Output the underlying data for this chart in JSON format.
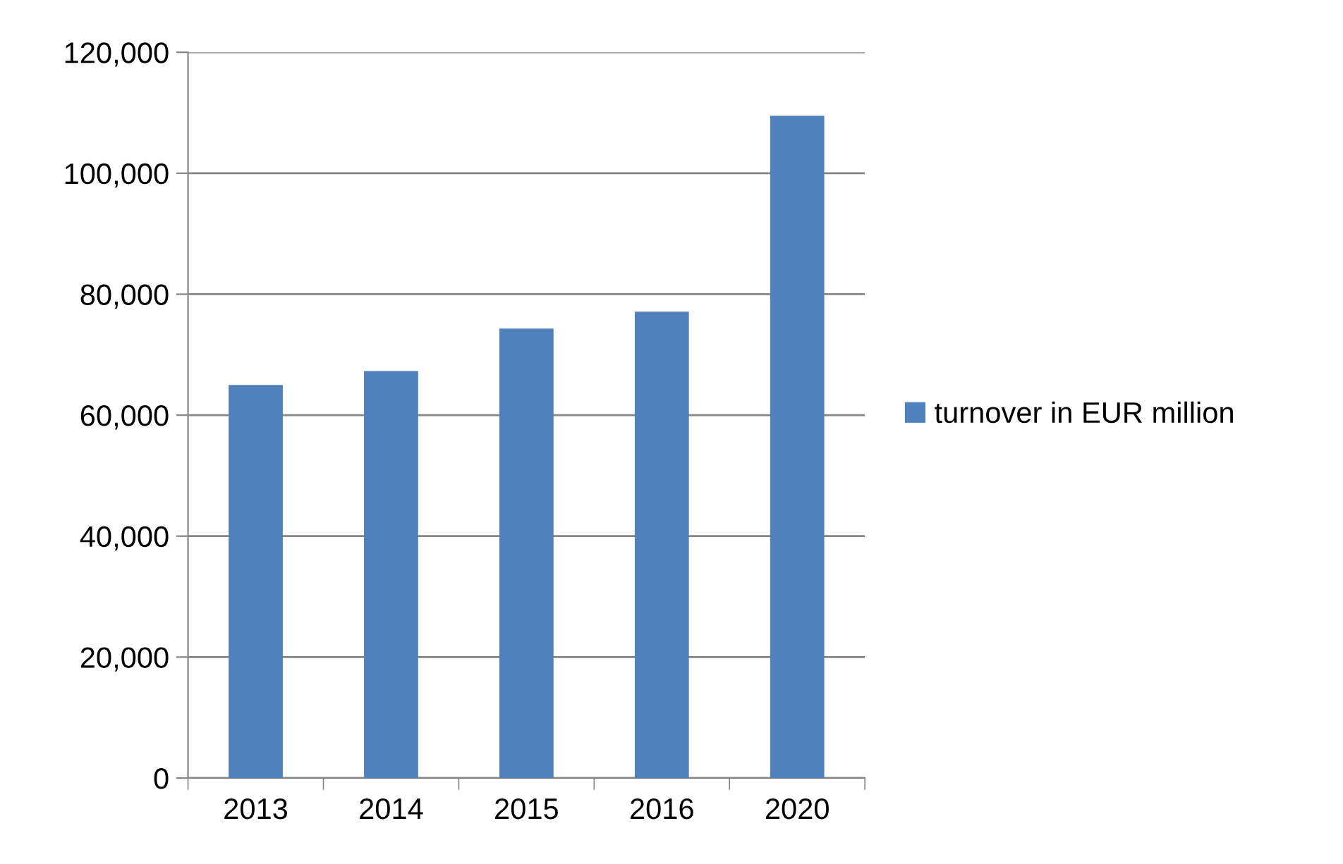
{
  "chart_data": {
    "type": "bar",
    "categories": [
      "2013",
      "2014",
      "2015",
      "2016",
      "2020"
    ],
    "series": [
      {
        "name": "turnover in EUR million",
        "color": "#4f81bd",
        "values": [
          65000,
          67300,
          74300,
          77100,
          109500
        ]
      }
    ],
    "ylim": [
      0,
      120000
    ],
    "yticks": [
      {
        "value": 0,
        "label": "0"
      },
      {
        "value": 20000,
        "label": "20,000"
      },
      {
        "value": 40000,
        "label": "40,000"
      },
      {
        "value": 60000,
        "label": "60,000"
      },
      {
        "value": 80000,
        "label": "80,000"
      },
      {
        "value": 100000,
        "label": "100,000"
      },
      {
        "value": 120000,
        "label": "120,000"
      }
    ],
    "grid": "y",
    "legend": "right"
  }
}
